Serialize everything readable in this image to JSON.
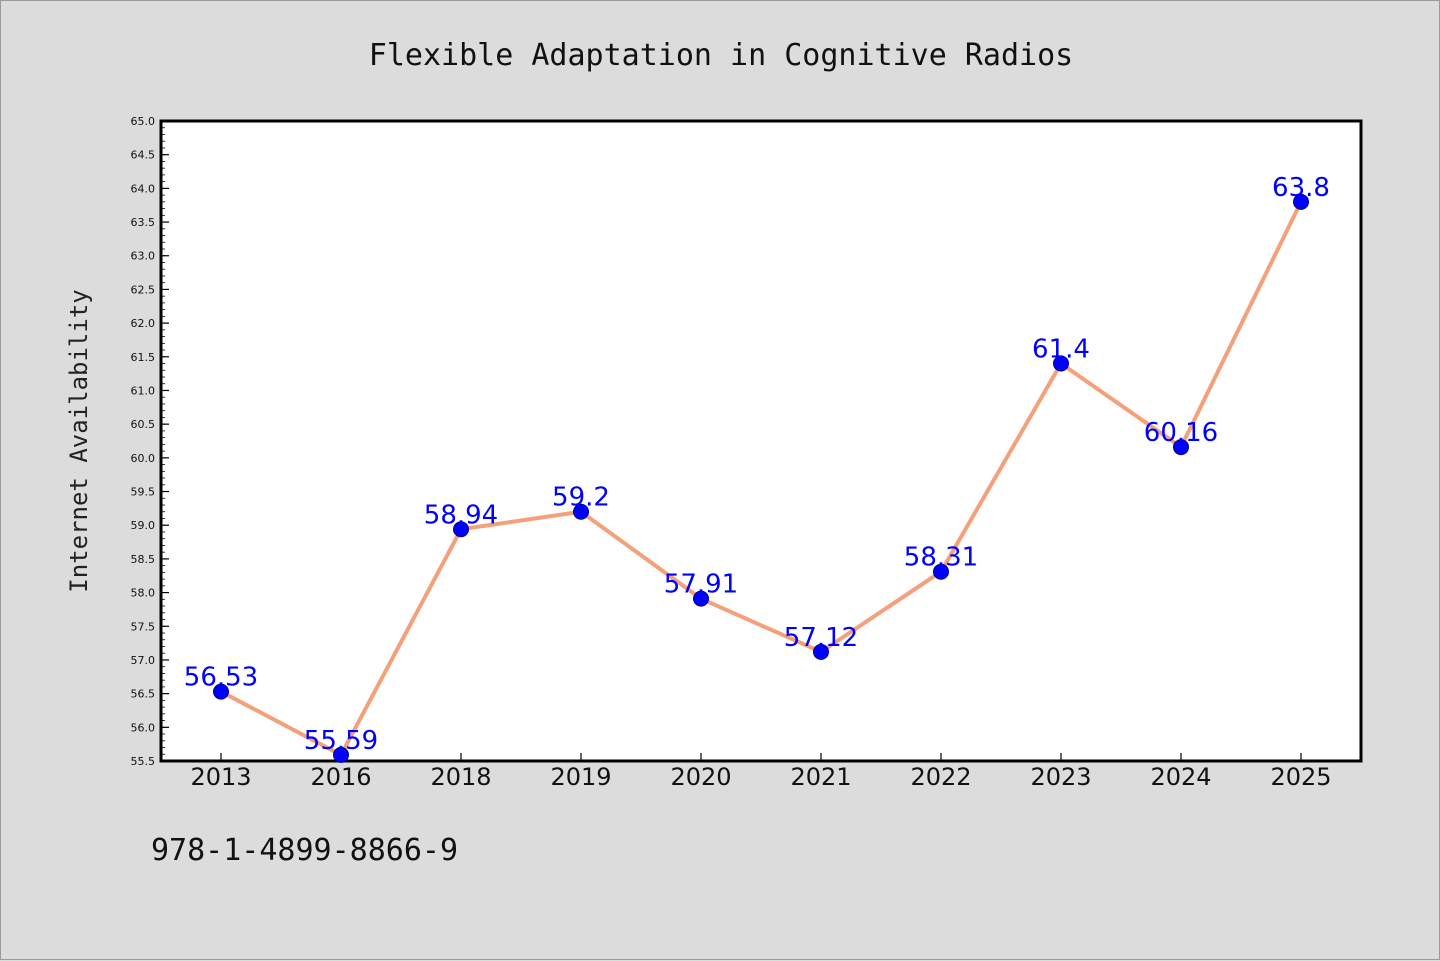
{
  "footer_note": "978-1-4899-8866-9",
  "chart_data": {
    "type": "line",
    "title": "Flexible Adaptation in Cognitive Radios",
    "xlabel": "",
    "ylabel": "Internet Availability",
    "categories": [
      "2013",
      "2016",
      "2018",
      "2019",
      "2020",
      "2021",
      "2022",
      "2023",
      "2024",
      "2025"
    ],
    "series": [
      {
        "values": [
          56.53,
          55.59,
          58.94,
          59.2,
          57.91,
          57.12,
          58.31,
          61.4,
          60.16,
          63.8
        ],
        "labels": [
          "56.53",
          "55.59",
          "58.94",
          "59.2",
          "57.91",
          "57.12",
          "58.31",
          "61.4",
          "60.16",
          "63.8"
        ]
      }
    ],
    "ylim": [
      55.5,
      65.0
    ],
    "yticks": [
      "55.5",
      "56.0",
      "56.5",
      "57.0",
      "57.5",
      "58.0",
      "58.5",
      "59.0",
      "59.5",
      "60.0",
      "60.5",
      "61.0",
      "61.5",
      "62.0",
      "62.5",
      "63.0",
      "63.5",
      "64.0",
      "64.5",
      "65.0"
    ],
    "grid": false,
    "colors": {
      "line": "#f4a07a",
      "marker": "#0000ff",
      "label": "#0000ff",
      "background": "#dcdcdc",
      "plot_background": "#ffffff"
    }
  }
}
